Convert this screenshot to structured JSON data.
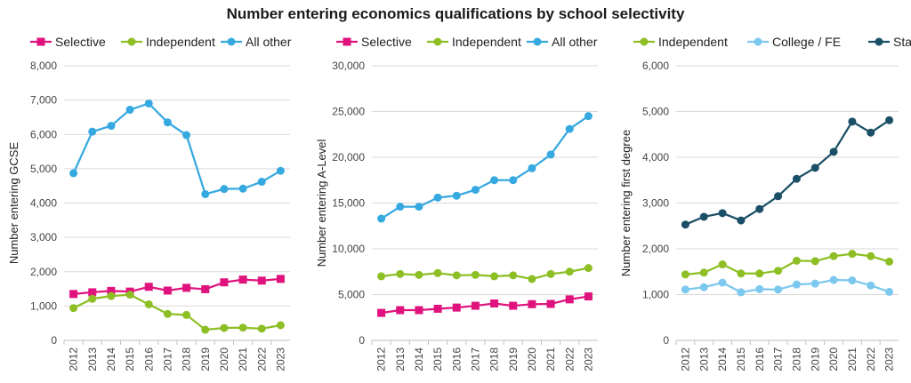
{
  "title": "Number entering economics qualifications by school selectivity",
  "colors": {
    "selective": "#e0137e",
    "independent": "#8dbf24",
    "all_other": "#36a9e0",
    "college_fe": "#7cc8ee",
    "state_other": "#1b4f66",
    "gridline": "#d9d9d9",
    "axis": "#bfbfbf"
  },
  "chart_data": [
    {
      "type": "line",
      "title": "",
      "xlabel": "",
      "ylabel": "Number entering GCSE",
      "ylim": [
        0,
        8000
      ],
      "yticks": [
        "0",
        "1,000",
        "2,000",
        "3,000",
        "4,000",
        "5,000",
        "6,000",
        "7,000",
        "8,000"
      ],
      "grid": true,
      "legend": "top",
      "categories": [
        "2012",
        "2013",
        "2014",
        "2015",
        "2016",
        "2017",
        "2018",
        "2019",
        "2020",
        "2021",
        "2022",
        "2023"
      ],
      "series": [
        {
          "name": "Selective",
          "color_key": "selective",
          "marker": "square",
          "values": [
            1350,
            1400,
            1440,
            1420,
            1560,
            1450,
            1530,
            1490,
            1690,
            1770,
            1740,
            1790
          ]
        },
        {
          "name": "Independent",
          "color_key": "independent",
          "marker": "circle",
          "values": [
            940,
            1210,
            1290,
            1330,
            1050,
            770,
            740,
            310,
            360,
            370,
            340,
            440
          ]
        },
        {
          "name": "All other",
          "color_key": "all_other",
          "marker": "circle",
          "values": [
            4870,
            6080,
            6250,
            6720,
            6900,
            6350,
            5980,
            4260,
            4410,
            4420,
            4620,
            4940
          ]
        }
      ]
    },
    {
      "type": "line",
      "title": "",
      "xlabel": "",
      "ylabel": "Number entering A-Level",
      "ylim": [
        0,
        30000
      ],
      "yticks": [
        "0",
        "5,000",
        "10,000",
        "15,000",
        "20,000",
        "25,000",
        "30,000"
      ],
      "grid": true,
      "legend": "top",
      "categories": [
        "2012",
        "2013",
        "2014",
        "2015",
        "2016",
        "2017",
        "2018",
        "2019",
        "2020",
        "2021",
        "2022",
        "2023"
      ],
      "series": [
        {
          "name": "Selective",
          "color_key": "selective",
          "marker": "square",
          "values": [
            3000,
            3300,
            3300,
            3450,
            3580,
            3780,
            4030,
            3780,
            3950,
            3980,
            4480,
            4800
          ]
        },
        {
          "name": "Independent",
          "color_key": "independent",
          "marker": "circle",
          "values": [
            7000,
            7250,
            7150,
            7350,
            7100,
            7150,
            7000,
            7100,
            6700,
            7250,
            7500,
            7900
          ]
        },
        {
          "name": "All other",
          "color_key": "all_other",
          "marker": "circle",
          "values": [
            13300,
            14600,
            14600,
            15600,
            15800,
            16450,
            17500,
            17500,
            18800,
            20300,
            23100,
            24500
          ]
        }
      ]
    },
    {
      "type": "line",
      "title": "",
      "xlabel": "",
      "ylabel": "Number entering first degree",
      "ylim": [
        0,
        6000
      ],
      "yticks": [
        "0",
        "1,000",
        "2,000",
        "3,000",
        "4,000",
        "5,000",
        "6,000"
      ],
      "grid": true,
      "legend": "top",
      "categories": [
        "2012",
        "2013",
        "2014",
        "2015",
        "2016",
        "2017",
        "2018",
        "2019",
        "2020",
        "2021",
        "2022",
        "2023"
      ],
      "series": [
        {
          "name": "Independent",
          "color_key": "independent",
          "marker": "circle",
          "values": [
            1440,
            1480,
            1660,
            1460,
            1460,
            1520,
            1740,
            1730,
            1840,
            1890,
            1840,
            1720
          ]
        },
        {
          "name": "College / FE",
          "color_key": "college_fe",
          "marker": "circle",
          "values": [
            1110,
            1160,
            1260,
            1050,
            1120,
            1110,
            1220,
            1240,
            1320,
            1310,
            1200,
            1060
          ]
        },
        {
          "name": "State / other",
          "color_key": "state_other",
          "marker": "circle",
          "values": [
            2530,
            2700,
            2780,
            2620,
            2870,
            3150,
            3530,
            3770,
            4120,
            4780,
            4540,
            4810
          ]
        }
      ]
    }
  ]
}
